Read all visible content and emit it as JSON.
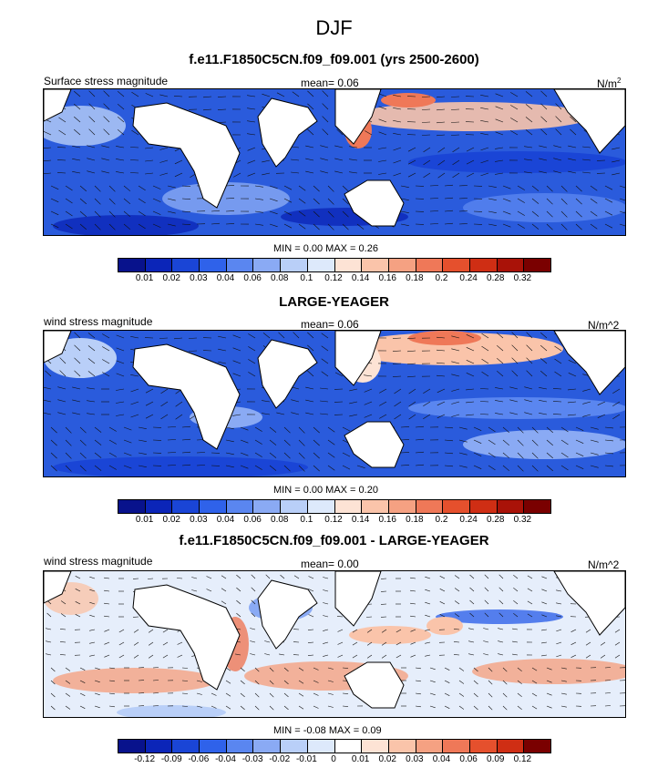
{
  "title": "DJF",
  "panels": [
    {
      "id": "p1",
      "title": "f.e11.F1850C5CN.f09_f09.001 (yrs 2500-2600)",
      "left_label": "Surface stress magnitude",
      "mean_label": "mean=  0.06",
      "units": "N/m",
      "units_sup": "2",
      "minmax": "MIN =  0.00 MAX =  0.26",
      "colorbar": {
        "colors": [
          "#08128c",
          "#0b25b8",
          "#1a45d6",
          "#2f62ea",
          "#5a86f0",
          "#8aaaf4",
          "#b9cff8",
          "#dde9fb",
          "#fde3d5",
          "#fac4aa",
          "#f5a182",
          "#ef7858",
          "#e5502d",
          "#cf2e14",
          "#a91208",
          "#7a0000"
        ],
        "ticks": [
          "0.01",
          "0.02",
          "0.03",
          "0.04",
          "0.06",
          "0.08",
          "0.1",
          "0.12",
          "0.14",
          "0.16",
          "0.18",
          "0.2",
          "0.24",
          "0.28",
          "0.32"
        ]
      }
    },
    {
      "id": "p2",
      "title": "LARGE-YEAGER",
      "left_label": "wind stress magnitude",
      "mean_label": "mean=  0.06",
      "units": "N/m^2",
      "units_sup": "",
      "minmax": "MIN =  0.00 MAX =  0.20",
      "colorbar": {
        "colors": [
          "#08128c",
          "#0b25b8",
          "#1a45d6",
          "#2f62ea",
          "#5a86f0",
          "#8aaaf4",
          "#b9cff8",
          "#dde9fb",
          "#fde3d5",
          "#fac4aa",
          "#f5a182",
          "#ef7858",
          "#e5502d",
          "#cf2e14",
          "#a91208",
          "#7a0000"
        ],
        "ticks": [
          "0.01",
          "0.02",
          "0.03",
          "0.04",
          "0.06",
          "0.08",
          "0.1",
          "0.12",
          "0.14",
          "0.16",
          "0.18",
          "0.2",
          "0.24",
          "0.28",
          "0.32"
        ]
      }
    },
    {
      "id": "p3",
      "title": "f.e11.F1850C5CN.f09_f09.001 - LARGE-YEAGER",
      "left_label": "wind stress magnitude",
      "mean_label": "mean=  0.00",
      "units": "N/m^2",
      "units_sup": "",
      "minmax": "MIN = -0.08 MAX =  0.09",
      "colorbar": {
        "colors": [
          "#08128c",
          "#0b25b8",
          "#1a45d6",
          "#2f62ea",
          "#5a86f0",
          "#8aaaf4",
          "#b9cff8",
          "#dde9fb",
          "#ffffff",
          "#fde3d5",
          "#fac4aa",
          "#f5a182",
          "#ef7858",
          "#e5502d",
          "#cf2e14",
          "#7a0000"
        ],
        "ticks": [
          "-0.12",
          "-0.09",
          "-0.06",
          "-0.04",
          "-0.03",
          "-0.02",
          "-0.01",
          "0",
          "0.01",
          "0.02",
          "0.03",
          "0.04",
          "0.06",
          "0.09",
          "0.12"
        ]
      }
    }
  ]
}
